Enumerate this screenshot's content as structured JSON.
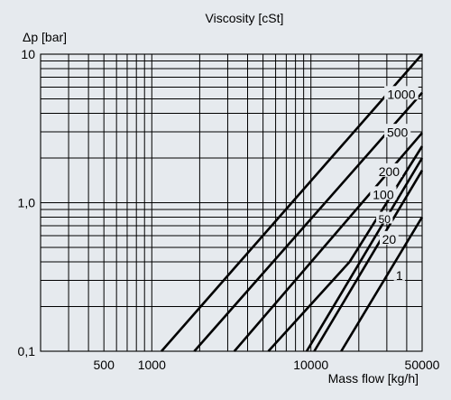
{
  "chart_data": {
    "type": "line",
    "title": "Viscosity [cSt]",
    "xlabel": "Mass flow [kg/h]",
    "ylabel": "Δp [bar]",
    "x_scale": "log",
    "y_scale": "log",
    "xlim": [
      200,
      50000
    ],
    "ylim": [
      0.1,
      10
    ],
    "grid": true,
    "background": "#e6eaee",
    "line_color": "#000000",
    "x_ticks": [
      {
        "value": 500,
        "label": "500"
      },
      {
        "value": 1000,
        "label": "1000"
      },
      {
        "value": 10000,
        "label": "10000"
      },
      {
        "value": 50000,
        "label": "50000"
      }
    ],
    "y_ticks": [
      {
        "value": 0.1,
        "label": "0,1"
      },
      {
        "value": 1,
        "label": "1,0"
      },
      {
        "value": 10,
        "label": "10"
      }
    ],
    "series": [
      {
        "name": "1000",
        "label_at": [
          37000,
          5.3
        ],
        "points": [
          [
            1150,
            0.1
          ],
          [
            50000,
            10
          ]
        ]
      },
      {
        "name": "500",
        "label_at": [
          35000,
          2.95
        ],
        "points": [
          [
            1850,
            0.1
          ],
          [
            50000,
            5.5
          ]
        ]
      },
      {
        "name": "200",
        "label_at": [
          31000,
          1.6
        ],
        "points": [
          [
            3300,
            0.1
          ],
          [
            50000,
            2.95
          ]
        ]
      },
      {
        "name": "100",
        "label_at": [
          28500,
          1.12
        ],
        "points": [
          [
            5400,
            0.1
          ],
          [
            17500,
            0.4
          ],
          [
            50000,
            2.4
          ]
        ]
      },
      {
        "name": "50",
        "label_at": [
          29000,
          0.77
        ],
        "points": [
          [
            9400,
            0.1
          ],
          [
            50000,
            2.0
          ]
        ]
      },
      {
        "name": "20",
        "label_at": [
          31000,
          0.56
        ],
        "points": [
          [
            10500,
            0.1
          ],
          [
            50000,
            1.65
          ]
        ]
      },
      {
        "name": "1",
        "label_at": [
          36000,
          0.32
        ],
        "points": [
          [
            15500,
            0.1
          ],
          [
            50000,
            0.8
          ]
        ]
      }
    ]
  }
}
